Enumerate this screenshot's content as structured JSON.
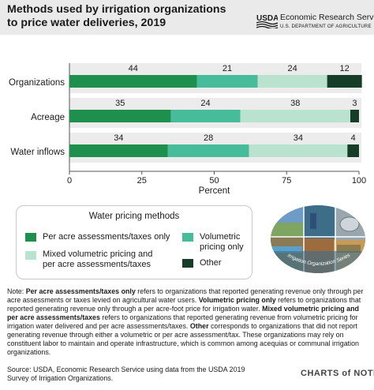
{
  "header": {
    "title_line1": "Methods used by irrigation organizations",
    "title_line2": "to price water deliveries, 2019",
    "agency_name": "Economic Research Service",
    "department": "U.S. DEPARTMENT OF AGRICULTURE",
    "logo_text": "USDA"
  },
  "colors": {
    "per_acre": "#1f8f4e",
    "volumetric": "#46bc9a",
    "mixed": "#b9e3cf",
    "other": "#153d28",
    "band": "#ececec",
    "header_bg": "#eaeaea"
  },
  "chart_data": {
    "type": "bar",
    "orientation": "horizontal",
    "stacked": true,
    "categories": [
      "Organizations",
      "Acreage",
      "Water inflows"
    ],
    "series": [
      {
        "name": "Per acre assessments/taxes only",
        "values": [
          44,
          35,
          34
        ]
      },
      {
        "name": "Volumetric pricing only",
        "values": [
          21,
          24,
          28
        ]
      },
      {
        "name": "Mixed volumetric pricing and per acre assessments/taxes",
        "values": [
          24,
          38,
          34
        ]
      },
      {
        "name": "Other",
        "values": [
          12,
          3,
          4
        ]
      }
    ],
    "xlabel": "Percent",
    "xlim": [
      0,
      100
    ],
    "xticks": [
      "0",
      "25",
      "50",
      "75",
      "100"
    ],
    "data_labels": true
  },
  "legend": {
    "title": "Water pricing methods",
    "items": [
      {
        "key": "per_acre",
        "label_line1": "Per acre assessments/taxes only",
        "label_line2": ""
      },
      {
        "key": "volumetric",
        "label_line1": "Volumetric",
        "label_line2": "pricing only"
      },
      {
        "key": "mixed",
        "label_line1": "Mixed volumetric pricing and",
        "label_line2": "per acre assessments/taxes"
      },
      {
        "key": "other",
        "label_line1": "Other",
        "label_line2": ""
      }
    ]
  },
  "photo": {
    "caption": "Irrigation Organization Series"
  },
  "note": {
    "intro": "Note: ",
    "t1_bold": "Per acre assessments/taxes only",
    "t1": " refers to organizations that reported generating revenue only through per acre assessments or taxes levied on agricultural water users. ",
    "t2_bold": "Volumetric pricing only",
    "t2": " refers to organizations that reported generating revenue only through a per acre-foot price for irrigation water. ",
    "t3_bold": "Mixed volumetric pricing and per acre assessments/taxes",
    "t3": " refers to organizations that reported generating revenue from volumetric pricing for irrigation water delivered and per acre assessments/taxes. ",
    "t4_bold": "Other",
    "t4": " corresponds to organizations that did not report generating revenue through either a volumetric or per acre assessment/tax. These organizations may rely on constituent labor to maintain and operate infrastructure, which is common among acequias or communal irrigation organizations."
  },
  "source": "Source: USDA, Economic Research Service using data from the USDA 2019 Survey of Irrigation Organizations.",
  "footer": {
    "brand": "CHARTS of NOTE"
  }
}
